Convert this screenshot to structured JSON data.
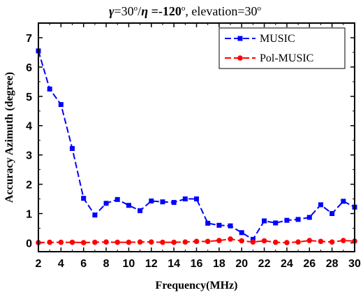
{
  "chart_data": {
    "type": "line",
    "title_parts": {
      "gamma_symbol": "γ",
      "gamma_value": "=30",
      "gamma_unit": "o",
      "separator": "/",
      "eta_symbol": "η",
      "eta_value": " =-120",
      "eta_unit": "o",
      "elevation_text": ",  elevation=30",
      "elevation_unit": "o"
    },
    "xlabel": "Frequency(MHz)",
    "ylabel": "Accuracy Azimuth (degree)",
    "xlim": [
      2,
      30
    ],
    "ylim": [
      -0.3,
      7.5
    ],
    "xticks": [
      2,
      4,
      6,
      8,
      10,
      12,
      14,
      16,
      18,
      20,
      22,
      24,
      26,
      28,
      30
    ],
    "yticks": [
      0,
      1,
      2,
      3,
      4,
      5,
      6,
      7
    ],
    "x": [
      2,
      3,
      4,
      5,
      6,
      7,
      8,
      9,
      10,
      11,
      12,
      13,
      14,
      15,
      16,
      17,
      18,
      19,
      20,
      21,
      22,
      23,
      24,
      25,
      26,
      27,
      28,
      29,
      30
    ],
    "legend_position": "top-right",
    "series": [
      {
        "name": "MUSIC",
        "color": "#0000ff",
        "marker": "square",
        "line_style": "dashed",
        "values": [
          6.55,
          5.25,
          4.72,
          3.22,
          1.52,
          0.95,
          1.35,
          1.48,
          1.28,
          1.1,
          1.43,
          1.4,
          1.38,
          1.5,
          1.5,
          0.67,
          0.6,
          0.58,
          0.35,
          0.12,
          0.75,
          0.68,
          0.77,
          0.8,
          0.87,
          1.3,
          1.0,
          1.42,
          1.22
        ]
      },
      {
        "name": "Pol-MUSIC",
        "color": "#ff0000",
        "marker": "circle",
        "line_style": "dashed",
        "values": [
          0.01,
          0.02,
          0.02,
          0.02,
          0.01,
          0.02,
          0.03,
          0.02,
          0.02,
          0.03,
          0.03,
          0.02,
          0.02,
          0.03,
          0.05,
          0.05,
          0.08,
          0.13,
          0.07,
          0.03,
          0.07,
          0.02,
          0.01,
          0.03,
          0.08,
          0.05,
          0.03,
          0.08,
          0.06
        ]
      }
    ]
  }
}
